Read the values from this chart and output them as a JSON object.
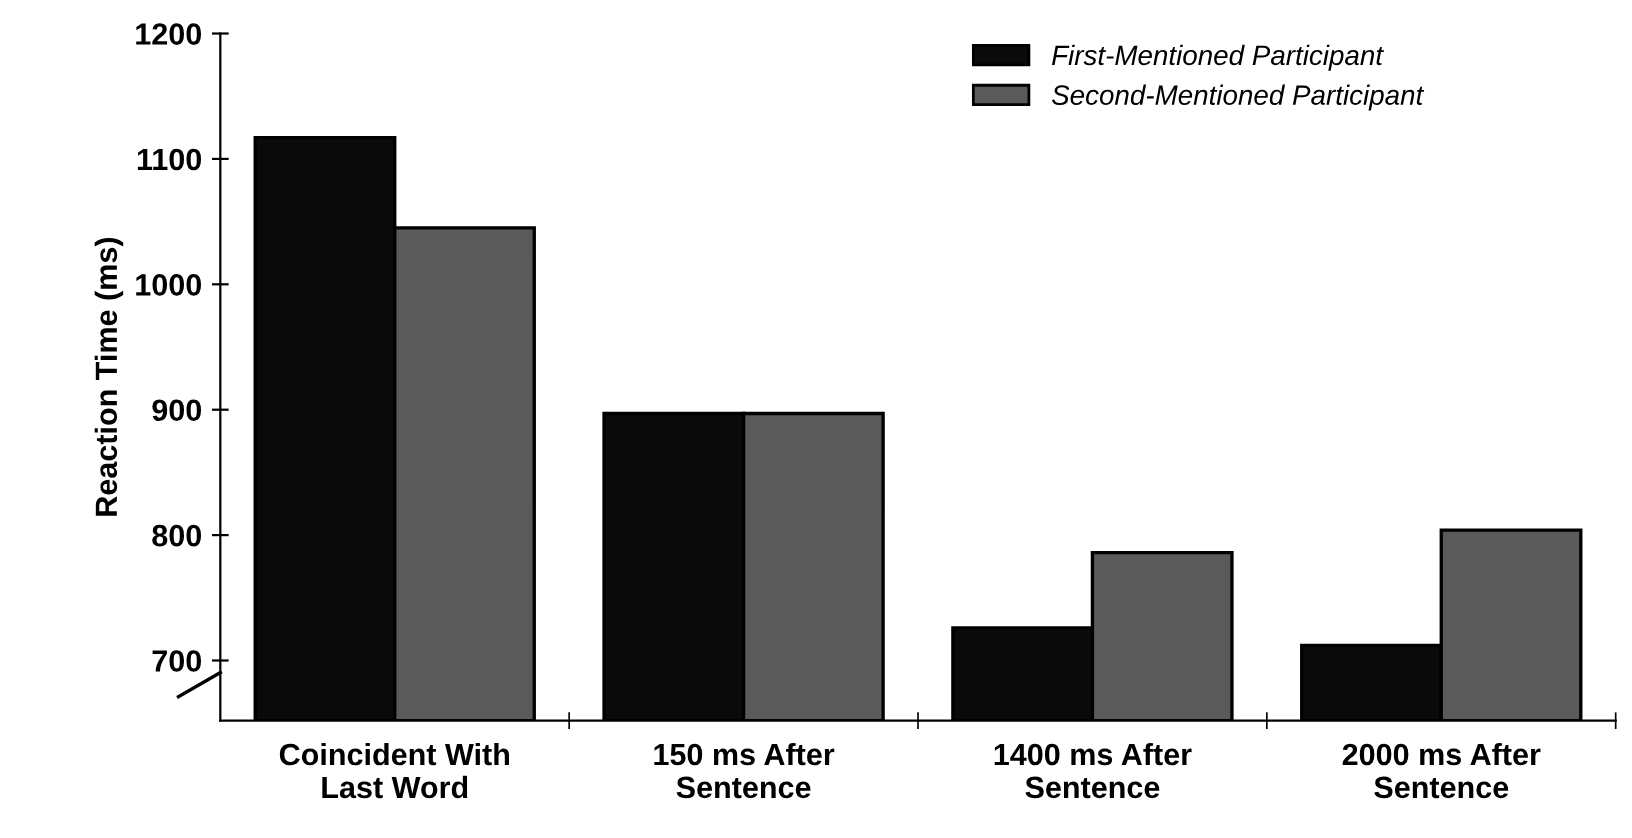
{
  "chart_data": {
    "type": "bar",
    "ylabel": "Reaction Time (ms)",
    "categories": [
      "Coincident With\nLast Word",
      "150 ms After\nSentence",
      "1400 ms After\nSentence",
      "2000 ms After\nSentence"
    ],
    "series": [
      {
        "name": "First-Mentioned Participant",
        "color": "#0a0a0a",
        "values": [
          1117,
          897,
          726,
          712
        ]
      },
      {
        "name": "Second-Mentioned Participant",
        "color": "#5a5a5a",
        "values": [
          1045,
          897,
          786,
          804
        ]
      }
    ],
    "ylim": [
      652,
      1200
    ],
    "yticks": [
      700,
      800,
      900,
      1000,
      1100,
      1200
    ],
    "grid": false,
    "legend": "top right"
  }
}
